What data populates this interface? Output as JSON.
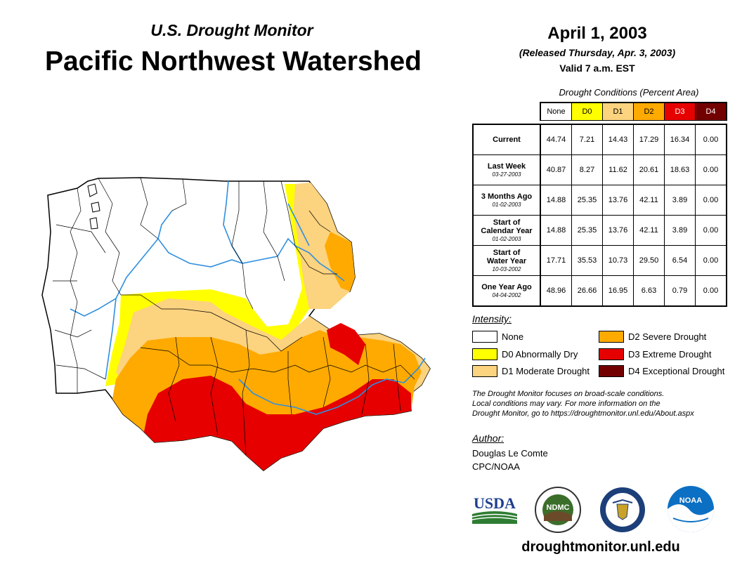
{
  "header": {
    "subtitle": "U.S. Drought Monitor",
    "title": "Pacific Northwest Watershed",
    "date": "April 1, 2003",
    "released": "(Released Thursday, Apr. 3, 2003)",
    "valid": "Valid 7 a.m. EST"
  },
  "table": {
    "caption": "Drought Conditions (Percent Area)",
    "columns": [
      "None",
      "D0",
      "D1",
      "D2",
      "D3",
      "D4"
    ],
    "rows": [
      {
        "label": "Current",
        "label2": "",
        "date": "",
        "values": [
          "44.74",
          "7.21",
          "14.43",
          "17.29",
          "16.34",
          "0.00"
        ]
      },
      {
        "label": "Last Week",
        "label2": "",
        "date": "03-27-2003",
        "values": [
          "40.87",
          "8.27",
          "11.62",
          "20.61",
          "18.63",
          "0.00"
        ]
      },
      {
        "label": "3 Months Ago",
        "label2": "",
        "date": "01-02-2003",
        "values": [
          "14.88",
          "25.35",
          "13.76",
          "42.11",
          "3.89",
          "0.00"
        ]
      },
      {
        "label": "Start of",
        "label2": "Calendar Year",
        "date": "01-02-2003",
        "values": [
          "14.88",
          "25.35",
          "13.76",
          "42.11",
          "3.89",
          "0.00"
        ]
      },
      {
        "label": "Start of",
        "label2": "Water Year",
        "date": "10-03-2002",
        "values": [
          "17.71",
          "35.53",
          "10.73",
          "29.50",
          "6.54",
          "0.00"
        ]
      },
      {
        "label": "One Year Ago",
        "label2": "",
        "date": "04-04-2002",
        "values": [
          "48.96",
          "26.66",
          "16.95",
          "6.63",
          "0.79",
          "0.00"
        ]
      }
    ]
  },
  "legend": {
    "title": "Intensity:",
    "items": [
      {
        "label": "None",
        "color": "#ffffff"
      },
      {
        "label": "D0 Abnormally Dry",
        "color": "#ffff00"
      },
      {
        "label": "D1 Moderate Drought",
        "color": "#fcd37f"
      },
      {
        "label": "D2 Severe Drought",
        "color": "#ffaa00"
      },
      {
        "label": "D3 Extreme Drought",
        "color": "#e60000"
      },
      {
        "label": "D4 Exceptional Drought",
        "color": "#730000"
      }
    ]
  },
  "notes": [
    "The Drought Monitor focuses on broad-scale conditions.",
    "Local conditions may vary. For more information on the",
    "Drought Monitor, go to https://droughtmonitor.unl.edu/About.aspx"
  ],
  "author": {
    "label": "Author:",
    "name": "Douglas Le Comte",
    "org": "CPC/NOAA"
  },
  "logos": {
    "usda": "USDA",
    "ndmc": "NDMC",
    "noaa": "NOAA"
  },
  "colors": {
    "d0": "#ffff00",
    "d1": "#fcd37f",
    "d2": "#ffaa00",
    "d3": "#e60000",
    "d4": "#730000",
    "river": "#2f8fe0"
  },
  "url": "droughtmonitor.unl.edu"
}
